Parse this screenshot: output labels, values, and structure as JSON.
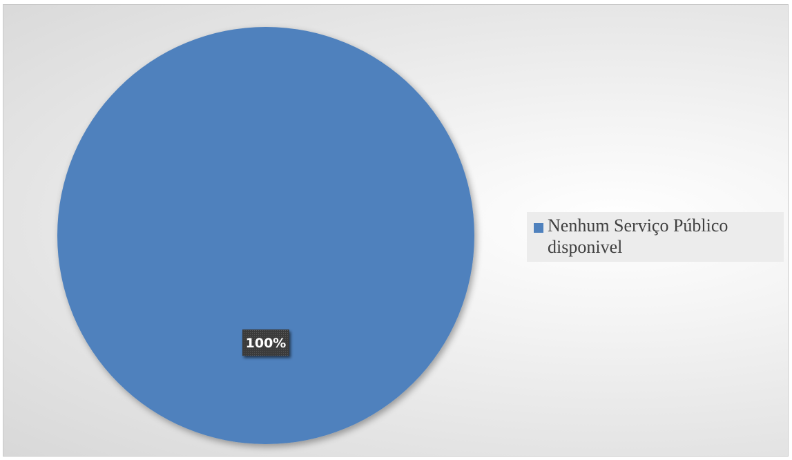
{
  "chart_data": {
    "type": "pie",
    "categories": [
      "Nenhum Serviço Público disponivel"
    ],
    "values": [
      100
    ],
    "data_labels": [
      "100%"
    ],
    "colors": [
      "#4f81bd"
    ],
    "legend_position": "right",
    "title": ""
  },
  "legend": {
    "items": [
      {
        "label_line1": "Nenhum Serviço Público",
        "label_line2": "disponivel",
        "color": "#4f81bd"
      }
    ]
  }
}
